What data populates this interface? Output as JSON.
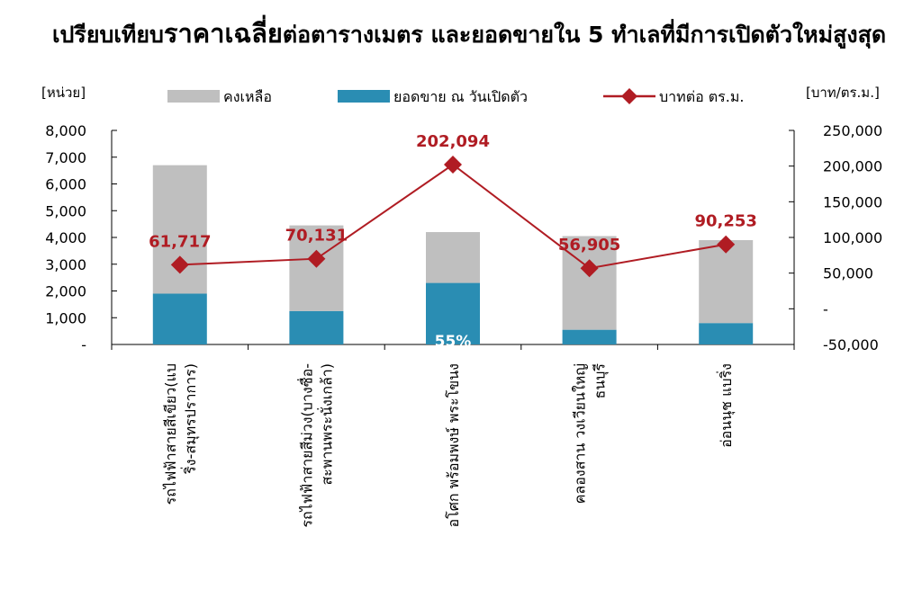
{
  "title": {
    "part1": "เปรียบเทียบ",
    "part2": "ราคาเฉลี่ย",
    "part3": "ต่อตารางเมตร และยอดขายใน 5 ทำเลที่มีการเปิดตัวใหม่สูงสุด"
  },
  "chart_data": {
    "type": "bar",
    "stacked": true,
    "categories": [
      [
        "รถไฟฟ้าสายสีเขียว(แบ",
        "ริ่ง-สมุทรปราการ)"
      ],
      [
        "รถไฟฟ้าสายสีม่วง(บางซื่อ-",
        "สะพานพระนั่งเกล้า)"
      ],
      [
        "อโศก พร้อมพงษ์ พระโขนง"
      ],
      [
        "คลองสาน วงเวียนใหญ่",
        "ธนบุรี"
      ],
      [
        "อ่อนนุช แบริ่ง"
      ]
    ],
    "series": [
      {
        "name": "ยอดขาย ณ วันเปิดตัว",
        "type": "bar",
        "axis": "left",
        "color": "#2a8db3",
        "values": [
          1900,
          1250,
          2300,
          550,
          800
        ]
      },
      {
        "name": "คงเหลือ",
        "type": "bar",
        "axis": "left",
        "color": "#bfbfbf",
        "values": [
          4800,
          3200,
          1900,
          3500,
          3100
        ]
      },
      {
        "name": "บาทต่อ ตร.ม.",
        "type": "line",
        "axis": "right",
        "color": "#b01c23",
        "values": [
          61717,
          70131,
          202094,
          56905,
          90253
        ],
        "labels": [
          "61,717",
          "70,131",
          "202,094",
          "56,905",
          "90,253"
        ]
      }
    ],
    "left_axis": {
      "unit": "[หน่วย]",
      "range": [
        0,
        8000
      ],
      "ticks": [
        0,
        1000,
        2000,
        3000,
        4000,
        5000,
        6000,
        7000,
        8000
      ],
      "tick_labels": [
        "-",
        "1,000",
        "2,000",
        "3,000",
        "4,000",
        "5,000",
        "6,000",
        "7,000",
        "8,000"
      ]
    },
    "right_axis": {
      "unit": "[บาท/ตร.ม.]",
      "range": [
        -50000,
        250000
      ],
      "ticks": [
        -50000,
        0,
        50000,
        100000,
        150000,
        200000,
        250000
      ],
      "tick_labels": [
        "-50,000",
        "-",
        "50,000",
        "100,000",
        "150,000",
        "200,000",
        "250,000"
      ]
    },
    "annotations": [
      {
        "category_index": 2,
        "text": "55%"
      }
    ],
    "legend": {
      "position": "top",
      "items": [
        {
          "label": "คงเหลือ",
          "marker": "box",
          "color": "#bfbfbf"
        },
        {
          "label": "ยอดขาย ณ วันเปิดตัว",
          "marker": "box",
          "color": "#2a8db3"
        },
        {
          "label": "บาทต่อ ตร.ม.",
          "marker": "line-diamond",
          "color": "#b01c23"
        }
      ]
    },
    "grid": false
  }
}
